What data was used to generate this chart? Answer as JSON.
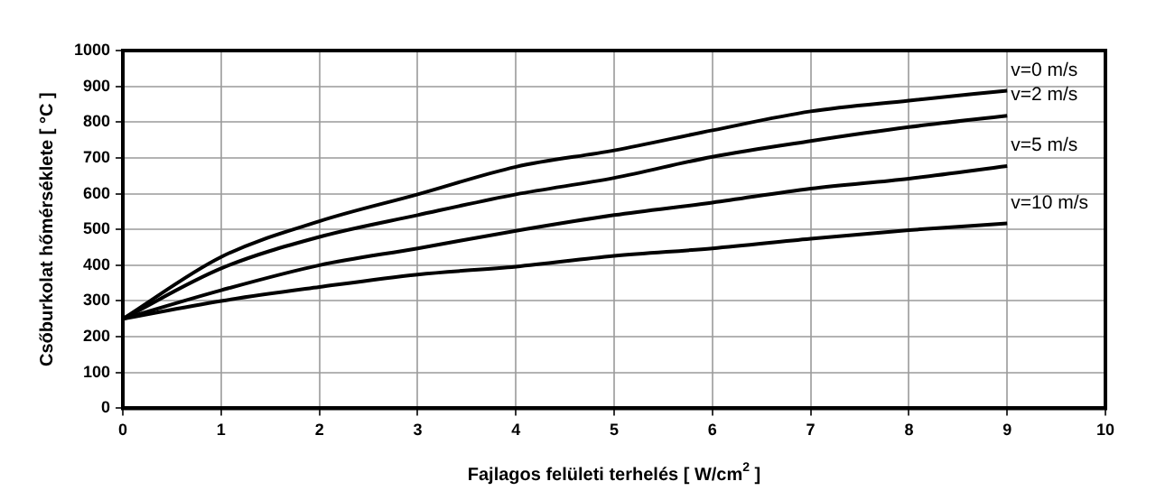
{
  "chart_data": {
    "type": "line",
    "xlabel": "Fajlagos felületi terhelés [ W/cm$^{2}$ ]",
    "ylabel": "Csőburkolat hőmérséklete [ °C ]",
    "x": [
      0,
      1,
      2,
      3,
      4,
      5,
      6,
      7,
      8,
      9
    ],
    "series": [
      {
        "name": "v=0 m/s",
        "color": "#000000",
        "values": [
          250,
          423,
          523,
          598,
          675,
          721,
          777,
          830,
          860,
          888
        ]
      },
      {
        "name": "v=2 m/s",
        "color": "#000000",
        "values": [
          250,
          391,
          479,
          540,
          598,
          644,
          703,
          747,
          786,
          818
        ]
      },
      {
        "name": "v=5 m/s",
        "color": "#000000",
        "values": [
          250,
          330,
          400,
          447,
          496,
          540,
          575,
          614,
          642,
          677
        ]
      },
      {
        "name": "v=10 m/s",
        "color": "#000000",
        "values": [
          250,
          300,
          339,
          374,
          396,
          426,
          447,
          474,
          498,
          517
        ]
      }
    ],
    "xlim": [
      0,
      10
    ],
    "xticks": [
      0,
      1,
      2,
      3,
      4,
      5,
      6,
      7,
      8,
      9,
      10
    ],
    "ylim": [
      0,
      1000
    ],
    "yticks": [
      0,
      100,
      200,
      300,
      400,
      500,
      600,
      700,
      800,
      900,
      1000
    ],
    "grid": true,
    "legend": false,
    "marker": "none",
    "line_style": "solid"
  }
}
